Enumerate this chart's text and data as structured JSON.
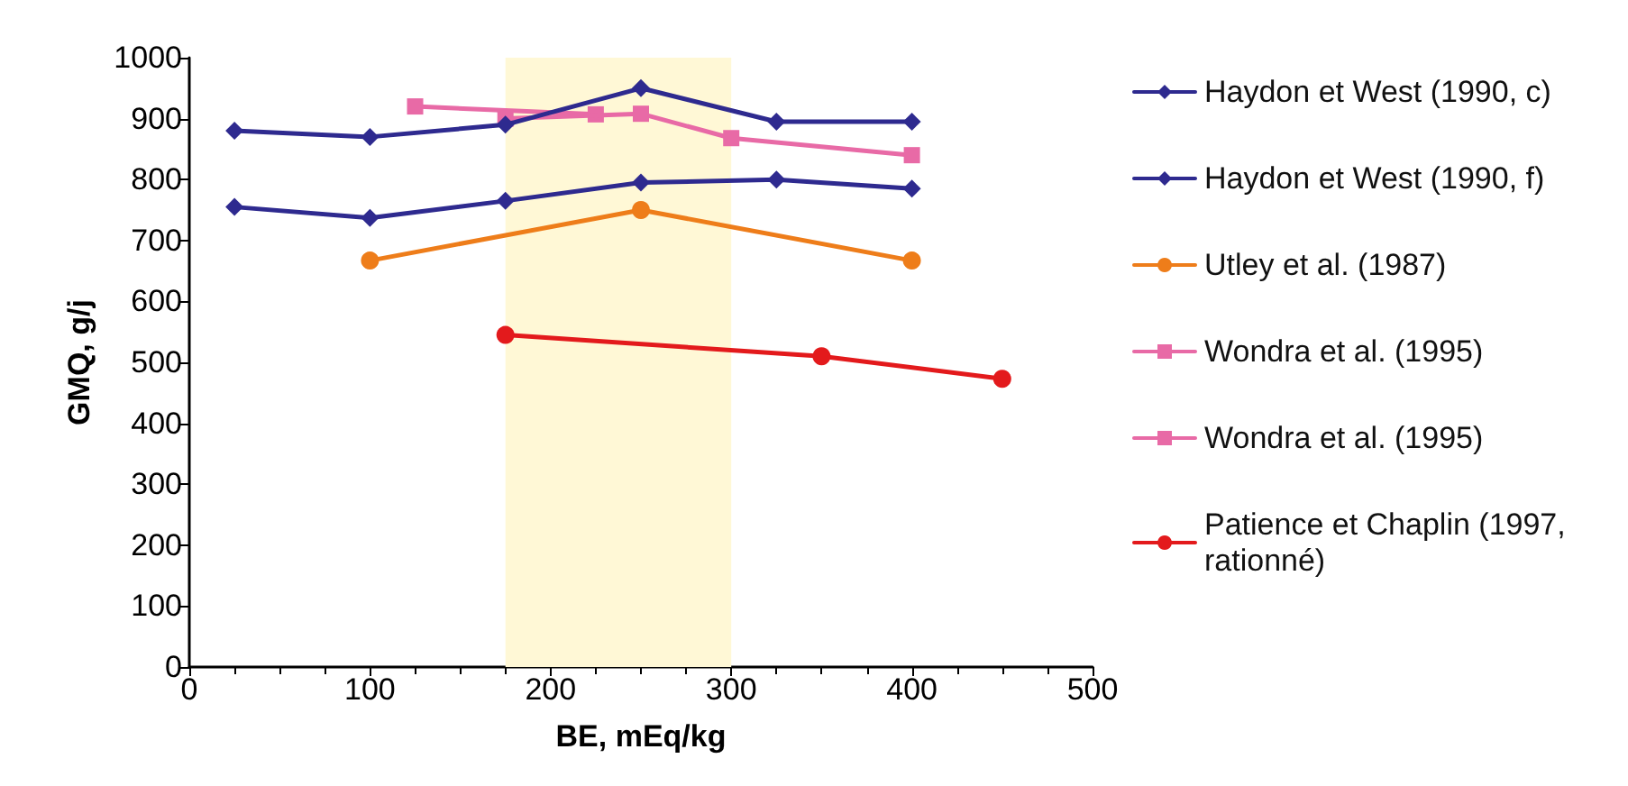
{
  "chart_data": {
    "type": "line",
    "xlabel": "BE, mEq/kg",
    "ylabel": "GMQ, g/j",
    "xlim": [
      0,
      500
    ],
    "xticks": [
      0,
      100,
      200,
      300,
      400,
      500
    ],
    "ylim": [
      0,
      1000
    ],
    "yticks": [
      0,
      100,
      200,
      300,
      400,
      500,
      600,
      700,
      800,
      900,
      1000
    ],
    "grid": false,
    "legend": "right",
    "line_style": "solid",
    "bands": [
      {
        "axis": "x",
        "from": 175,
        "to": 300,
        "color": "#fff8d6"
      }
    ],
    "series": [
      {
        "name": "Haydon et West (1990, c)",
        "color": "#2e2a8f",
        "marker": "diamond",
        "x": [
          25,
          100,
          175,
          250,
          325,
          400
        ],
        "values": [
          880,
          870,
          890,
          950,
          895,
          895
        ]
      },
      {
        "name": "Haydon et West (1990, f)",
        "color": "#2e2a8f",
        "marker": "diamond",
        "x": [
          25,
          100,
          175,
          250,
          325,
          400
        ],
        "values": [
          755,
          737,
          765,
          795,
          800,
          785
        ]
      },
      {
        "name": "Utley et al. (1987)",
        "color": "#ee7d1a",
        "marker": "circle",
        "x": [
          100,
          250,
          400
        ],
        "values": [
          667,
          750,
          667
        ]
      },
      {
        "name": "Wondra et al. (1995)",
        "color": "#e86aa6",
        "marker": "square",
        "x": [
          175,
          250,
          300,
          400
        ],
        "values": [
          900,
          908,
          868,
          840
        ]
      },
      {
        "name": "Wondra et al. (1995)",
        "color": "#e86aa6",
        "marker": "square",
        "x": [
          125,
          225
        ],
        "values": [
          920,
          907
        ]
      },
      {
        "name": "Patience et Chaplin (1997, rationné)",
        "color": "#e31a1c",
        "marker": "circle",
        "x": [
          175,
          350,
          450
        ],
        "values": [
          545,
          510,
          473
        ]
      }
    ]
  }
}
